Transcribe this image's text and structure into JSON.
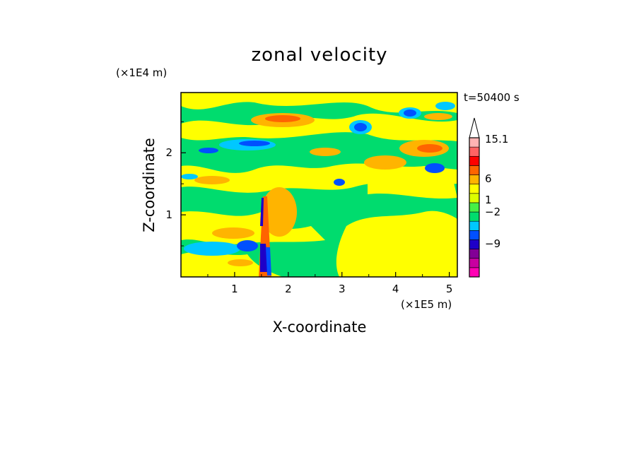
{
  "chart_data": {
    "type": "heatmap",
    "title": "zonal velocity",
    "xlabel": "X-coordinate",
    "ylabel": "Z-coordinate",
    "x_unit": "(×1E5 m)",
    "y_unit": "(×1E4 m)",
    "time_label": "t=50400 s",
    "xlim": [
      0,
      5.15
    ],
    "ylim": [
      0,
      2.97
    ],
    "x_ticks": [
      1,
      2,
      3,
      4,
      5
    ],
    "y_ticks": [
      1,
      2
    ],
    "x_tick_labels": [
      "1",
      "2",
      "3",
      "4",
      "5"
    ],
    "y_tick_labels": [
      "1",
      "2"
    ],
    "grid": false,
    "colorbar": {
      "labels": [
        "15.1",
        "6",
        "1",
        "−2",
        "−9"
      ],
      "label_values": [
        15.1,
        6,
        1,
        -2,
        -9
      ],
      "colors": [
        "#ff00b4",
        "#c800a0",
        "#820096",
        "#1e00c8",
        "#0050ff",
        "#00c8ff",
        "#00dc6e",
        "#46f046",
        "#dcff00",
        "#ffff00",
        "#ffb400",
        "#ff6400",
        "#ff0000",
        "#ff6464",
        "#ffb4b4",
        "#ffffff"
      ],
      "extend": "max"
    }
  }
}
